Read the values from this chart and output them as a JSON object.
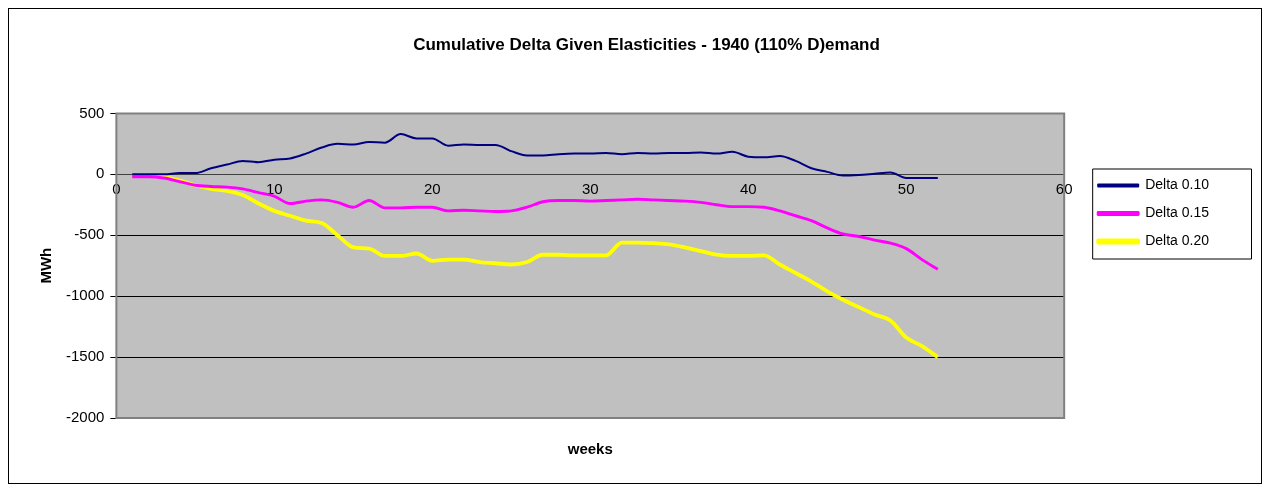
{
  "chart_data": {
    "type": "line",
    "title": "Cumulative Delta Given Elasticities - 1940 (110% D)emand",
    "xlabel": "weeks",
    "ylabel": "MWh",
    "x": [
      1,
      2,
      3,
      4,
      5,
      6,
      7,
      8,
      9,
      10,
      11,
      12,
      13,
      14,
      15,
      16,
      17,
      18,
      19,
      20,
      21,
      22,
      23,
      24,
      25,
      26,
      27,
      28,
      29,
      30,
      31,
      32,
      33,
      34,
      35,
      36,
      37,
      38,
      39,
      40,
      41,
      42,
      43,
      44,
      45,
      46,
      47,
      48,
      49,
      50,
      51,
      52
    ],
    "series": [
      {
        "name": "Delta 0.10",
        "color": "#000080",
        "values": [
          0,
          0,
          0,
          10,
          10,
          50,
          80,
          110,
          100,
          120,
          130,
          170,
          220,
          250,
          245,
          265,
          260,
          330,
          295,
          295,
          235,
          245,
          240,
          240,
          190,
          155,
          155,
          165,
          170,
          170,
          175,
          165,
          175,
          170,
          175,
          175,
          180,
          170,
          185,
          145,
          140,
          150,
          110,
          50,
          20,
          -10,
          -5,
          5,
          15,
          -30,
          -30,
          -30
        ]
      },
      {
        "name": "Delta 0.15",
        "color": "#ff00ff",
        "values": [
          -20,
          -20,
          -30,
          -60,
          -90,
          -100,
          -105,
          -120,
          -150,
          -180,
          -240,
          -220,
          -210,
          -230,
          -270,
          -215,
          -275,
          -275,
          -270,
          -270,
          -300,
          -295,
          -300,
          -305,
          -300,
          -270,
          -225,
          -215,
          -215,
          -220,
          -215,
          -210,
          -205,
          -210,
          -215,
          -220,
          -230,
          -250,
          -265,
          -265,
          -270,
          -300,
          -340,
          -380,
          -440,
          -490,
          -510,
          -540,
          -565,
          -610,
          -700,
          -780
        ]
      },
      {
        "name": "Delta 0.20",
        "color": "#ffff00",
        "values": [
          -10,
          -10,
          -20,
          -50,
          -90,
          -120,
          -135,
          -170,
          -240,
          -300,
          -340,
          -380,
          -400,
          -500,
          -600,
          -610,
          -670,
          -670,
          -650,
          -710,
          -700,
          -700,
          -720,
          -730,
          -740,
          -720,
          -660,
          -660,
          -665,
          -665,
          -665,
          -560,
          -560,
          -565,
          -575,
          -600,
          -630,
          -660,
          -670,
          -670,
          -665,
          -740,
          -810,
          -880,
          -960,
          -1030,
          -1090,
          -1150,
          -1200,
          -1340,
          -1410,
          -1500
        ]
      }
    ],
    "xlim": [
      0,
      60
    ],
    "xticks": [
      0,
      10,
      20,
      30,
      40,
      50,
      60
    ],
    "ylim": [
      -2000,
      500
    ],
    "yticks": [
      -2000,
      -1500,
      -1000,
      -500,
      0,
      500
    ],
    "grid": "y",
    "legend": "right",
    "marker": "none",
    "line_style": "solid"
  }
}
